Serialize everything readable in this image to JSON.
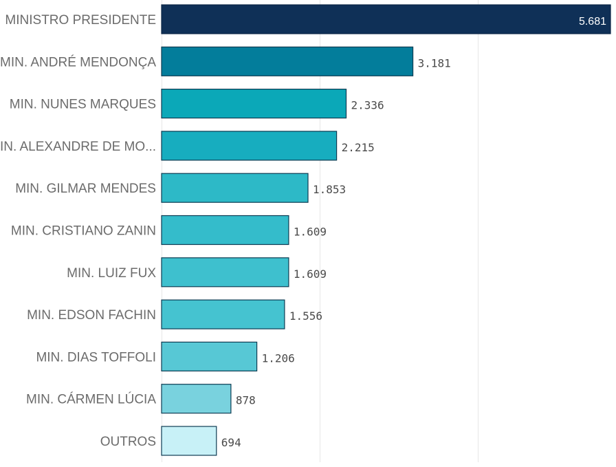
{
  "chart_data": {
    "type": "bar",
    "orientation": "horizontal",
    "categories": [
      "MINISTRO PRESIDENTE",
      "MIN. ANDRÉ MENDONÇA",
      "MIN. NUNES MARQUES",
      "MIN. ALEXANDRE DE MO...",
      "MIN. GILMAR MENDES",
      "MIN. CRISTIANO ZANIN",
      "MIN. LUIZ FUX",
      "MIN. EDSON FACHIN",
      "MIN. DIAS TOFFOLI",
      "MIN. CÁRMEN LÚCIA",
      "OUTROS"
    ],
    "values": [
      5681,
      3181,
      2336,
      2215,
      1853,
      1609,
      1609,
      1556,
      1206,
      878,
      694
    ],
    "value_labels": [
      "5.681",
      "3.181",
      "2.336",
      "2.215",
      "1.853",
      "1.609",
      "1.609",
      "1.556",
      "1.206",
      "878",
      "694"
    ],
    "colors": [
      "#0f3057",
      "#037d9b",
      "#0ba8b8",
      "#17adbf",
      "#2db9c7",
      "#34bccb",
      "#3ec0ce",
      "#45c3d0",
      "#57c8d5",
      "#79d2de",
      "#c8f1f7"
    ],
    "grid": true,
    "xlim": [
      0,
      5681
    ],
    "title": "",
    "xlabel": "",
    "ylabel": ""
  }
}
